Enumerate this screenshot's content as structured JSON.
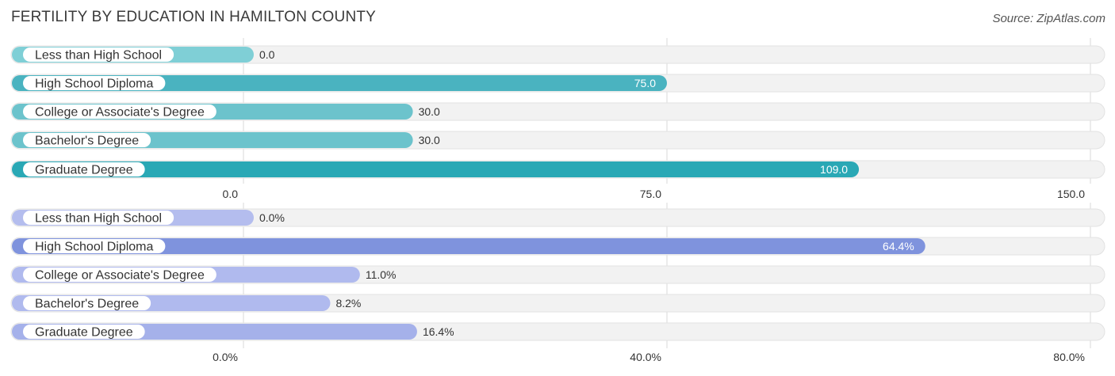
{
  "title": "FERTILITY BY EDUCATION IN HAMILTON COUNTY",
  "source": "Source: ZipAtlas.com",
  "chart_data": [
    {
      "type": "bar",
      "orientation": "horizontal",
      "categories": [
        "Less than High School",
        "High School Diploma",
        "College or Associate's Degree",
        "Bachelor's Degree",
        "Graduate Degree"
      ],
      "values": [
        0.0,
        75.0,
        30.0,
        30.0,
        109.0
      ],
      "value_labels": [
        "0.0",
        "75.0",
        "30.0",
        "30.0",
        "109.0"
      ],
      "xlim": [
        0,
        150
      ],
      "ticks": [
        0,
        75,
        150
      ],
      "tick_labels": [
        "0.0",
        "75.0",
        "150.0"
      ],
      "colors": [
        "#7fcfd6",
        "#4ab3c0",
        "#6cc3cc",
        "#6cc3cc",
        "#2aa8b5"
      ]
    },
    {
      "type": "bar",
      "orientation": "horizontal",
      "categories": [
        "Less than High School",
        "High School Diploma",
        "College or Associate's Degree",
        "Bachelor's Degree",
        "Graduate Degree"
      ],
      "values": [
        0.0,
        64.4,
        11.0,
        8.2,
        16.4
      ],
      "value_labels": [
        "0.0%",
        "64.4%",
        "11.0%",
        "8.2%",
        "16.4%"
      ],
      "xlim": [
        0,
        80
      ],
      "ticks": [
        0,
        40,
        80
      ],
      "tick_labels": [
        "0.0%",
        "40.0%",
        "80.0%"
      ],
      "colors": [
        "#b4bdee",
        "#7f93dd",
        "#b0baee",
        "#b0baee",
        "#a5b1ea"
      ]
    }
  ]
}
